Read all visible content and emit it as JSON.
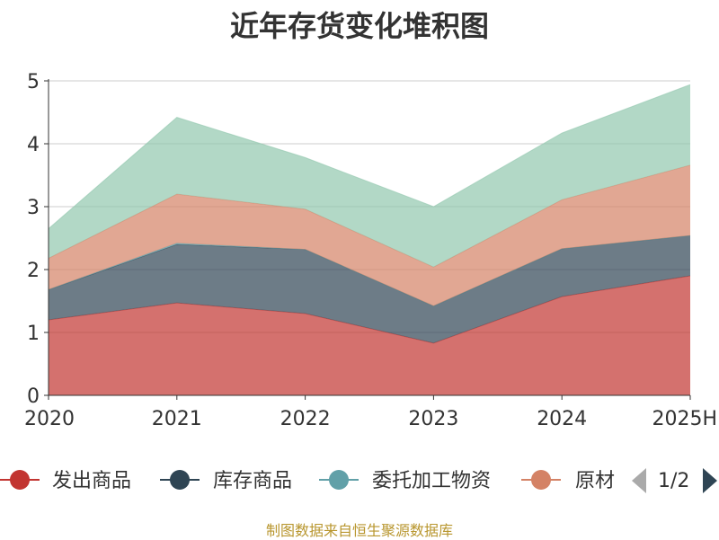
{
  "title": "近年存货变化堆积图",
  "source": "制图数据来自恒生聚源数据库",
  "legend_page": "1/2",
  "chart_data": {
    "type": "area",
    "stacked": true,
    "x": [
      "2020",
      "2021",
      "2022",
      "2023",
      "2024",
      "2025H"
    ],
    "ylim": [
      0,
      5
    ],
    "yticks": [
      "0",
      "1",
      "2",
      "3",
      "4",
      "5"
    ],
    "ylabel": "",
    "series": [
      {
        "name": "发出商品",
        "color": "#c23531",
        "values": [
          1.2,
          1.47,
          1.3,
          0.83,
          1.57,
          1.9
        ]
      },
      {
        "name": "库存商品",
        "color": "#2f4554",
        "values": [
          0.48,
          0.93,
          1.02,
          0.59,
          0.76,
          0.64
        ]
      },
      {
        "name": "委托加工物资",
        "color": "#61a0a8",
        "values": [
          0.0,
          0.02,
          0.0,
          0.0,
          0.0,
          0.0
        ]
      },
      {
        "name": "原材料",
        "color": "#d48265",
        "values": [
          0.5,
          0.78,
          0.64,
          0.62,
          0.78,
          1.12
        ]
      },
      {
        "name": "",
        "color": "#91c7ae",
        "values": [
          0.47,
          1.22,
          0.82,
          0.96,
          1.06,
          1.28
        ]
      }
    ],
    "legend_visible": [
      "发出商品",
      "库存商品",
      "委托加工物资",
      "原材"
    ],
    "grid": true,
    "legend_position": "bottom"
  }
}
